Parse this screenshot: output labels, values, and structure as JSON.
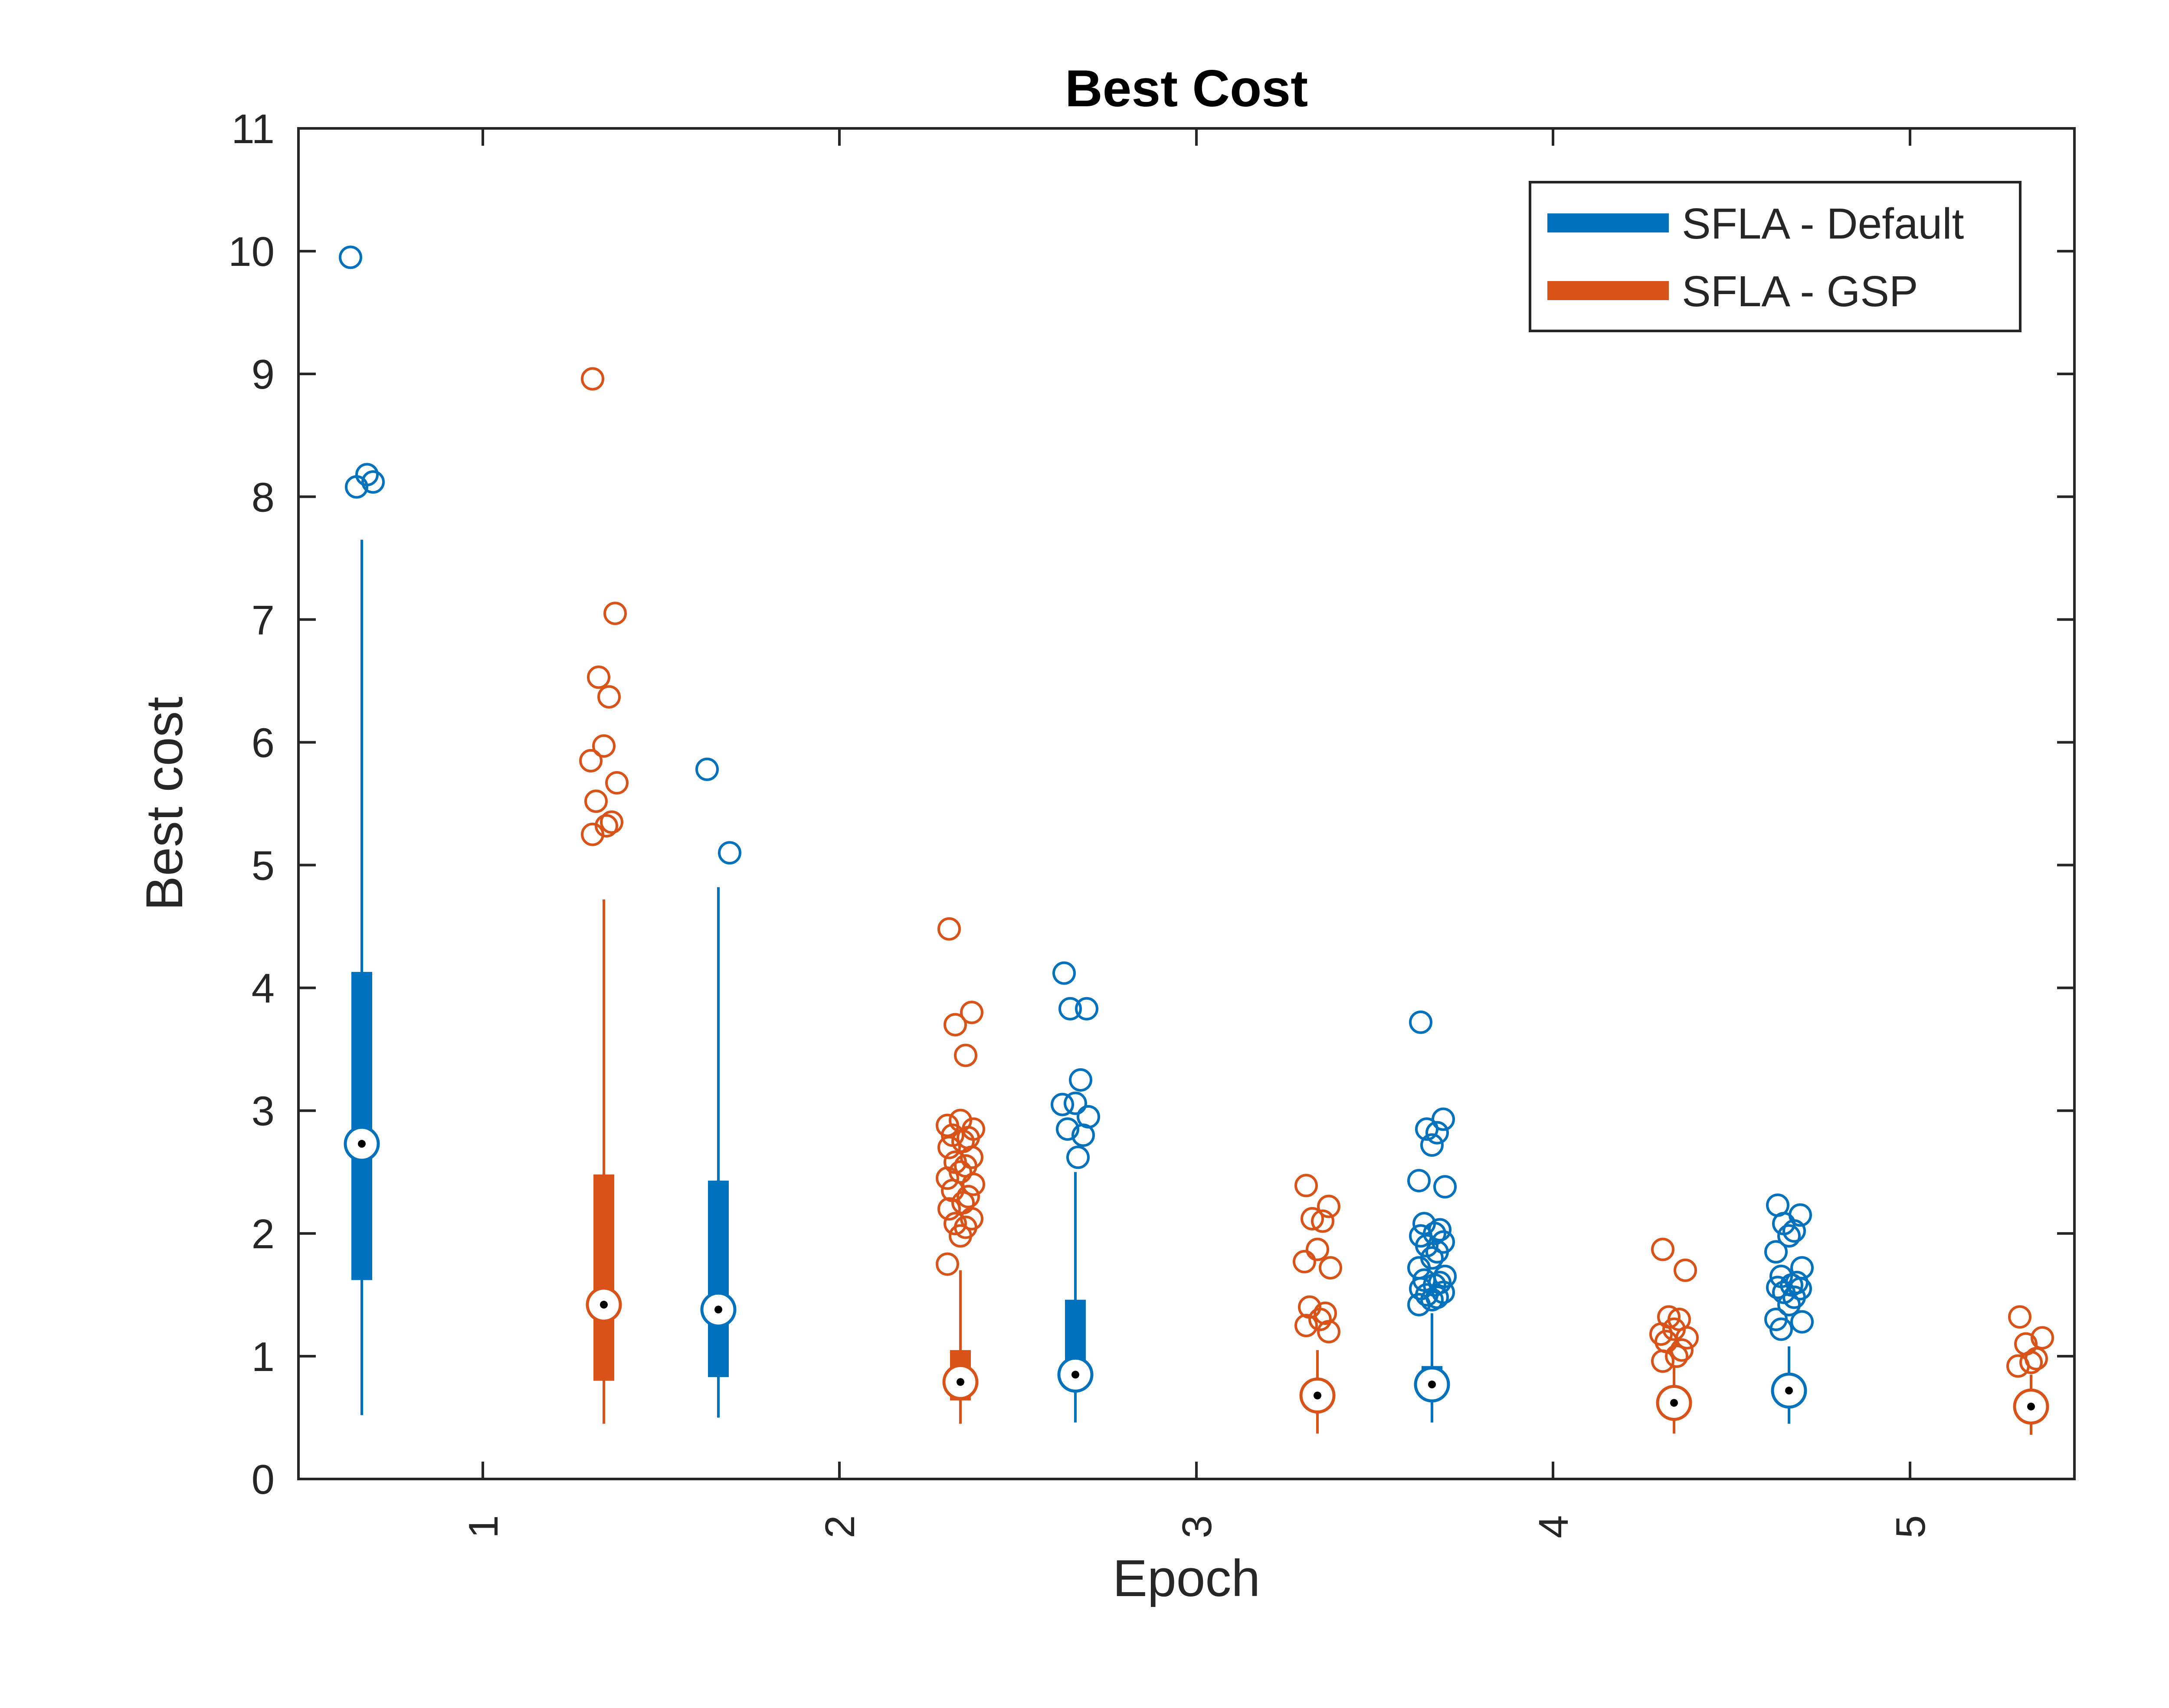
{
  "chart_data": {
    "type": "boxplot",
    "title": "Best Cost",
    "xlabel": "Epoch",
    "ylabel": "Best cost",
    "ylim": [
      0,
      11
    ],
    "yticks": [
      "0",
      "1",
      "2",
      "3",
      "4",
      "5",
      "6",
      "7",
      "8",
      "9",
      "10",
      "11"
    ],
    "categories": [
      "1",
      "2",
      "3",
      "4",
      "5"
    ],
    "legend_position": "top-right",
    "series": [
      {
        "name": "SFLA - Default",
        "color": "#0072BD",
        "boxes": [
          {
            "category": "1",
            "whisker_low": 0.52,
            "q1": 1.62,
            "median": 2.73,
            "q3": 4.13,
            "whisker_high": 7.65,
            "outliers": [
              9.95,
              8.12,
              8.08,
              8.18
            ]
          },
          {
            "category": "2",
            "whisker_low": 0.5,
            "q1": 0.83,
            "median": 1.38,
            "q3": 2.43,
            "whisker_high": 4.82,
            "outliers": [
              5.78,
              5.1
            ]
          },
          {
            "category": "3",
            "whisker_low": 0.46,
            "q1": 0.74,
            "median": 0.85,
            "q3": 1.46,
            "whisker_high": 2.5,
            "outliers": [
              4.12,
              3.83,
              3.83,
              3.25,
              3.06,
              3.05,
              2.95,
              2.85,
              2.8,
              2.62
            ]
          },
          {
            "category": "4",
            "whisker_low": 0.46,
            "q1": 0.72,
            "median": 0.77,
            "q3": 0.92,
            "whisker_high": 1.35,
            "outliers": [
              3.72,
              2.93,
              2.85,
              2.82,
              2.72,
              2.43,
              2.38,
              2.08,
              2.03,
              2.0,
              1.98,
              1.93,
              1.9,
              1.85,
              1.8,
              1.72,
              1.65,
              1.62,
              1.6,
              1.58,
              1.55,
              1.52,
              1.5,
              1.48,
              1.46,
              1.42
            ]
          },
          {
            "category": "5",
            "whisker_low": 0.45,
            "q1": 0.66,
            "median": 0.72,
            "q3": 0.82,
            "whisker_high": 1.08,
            "outliers": [
              2.23,
              2.15,
              2.08,
              2.02,
              1.98,
              1.85,
              1.72,
              1.65,
              1.6,
              1.58,
              1.56,
              1.55,
              1.52,
              1.48,
              1.42,
              1.3,
              1.28,
              1.22
            ]
          }
        ]
      },
      {
        "name": "SFLA - GSP",
        "color": "#D95319",
        "boxes": [
          {
            "category": "1",
            "whisker_low": 0.45,
            "q1": 0.8,
            "median": 1.42,
            "q3": 2.48,
            "whisker_high": 4.72,
            "outliers": [
              8.96,
              7.05,
              6.53,
              6.37,
              5.97,
              5.85,
              5.67,
              5.52,
              5.35,
              5.32,
              5.25
            ]
          },
          {
            "category": "2",
            "whisker_low": 0.45,
            "q1": 0.64,
            "median": 0.79,
            "q3": 1.05,
            "whisker_high": 1.7,
            "outliers": [
              4.48,
              3.8,
              3.7,
              3.45,
              2.92,
              2.88,
              2.85,
              2.8,
              2.78,
              2.75,
              2.7,
              2.62,
              2.58,
              2.55,
              2.5,
              2.45,
              2.4,
              2.35,
              2.3,
              2.25,
              2.2,
              2.12,
              2.08,
              2.05,
              1.98,
              1.75
            ]
          },
          {
            "category": "3",
            "whisker_low": 0.37,
            "q1": 0.6,
            "median": 0.68,
            "q3": 0.8,
            "whisker_high": 1.05,
            "outliers": [
              2.39,
              2.22,
              2.12,
              2.1,
              1.87,
              1.77,
              1.72,
              1.4,
              1.35,
              1.3,
              1.25,
              1.2
            ]
          },
          {
            "category": "4",
            "whisker_low": 0.37,
            "q1": 0.55,
            "median": 0.62,
            "q3": 0.72,
            "whisker_high": 0.92,
            "outliers": [
              1.87,
              1.7,
              1.32,
              1.3,
              1.22,
              1.18,
              1.15,
              1.12,
              1.05,
              1.0,
              0.96
            ]
          },
          {
            "category": "5",
            "whisker_low": 0.36,
            "q1": 0.52,
            "median": 0.59,
            "q3": 0.68,
            "whisker_high": 0.85,
            "outliers": [
              1.32,
              1.15,
              1.1,
              0.98,
              0.95,
              0.92
            ]
          }
        ]
      }
    ]
  }
}
